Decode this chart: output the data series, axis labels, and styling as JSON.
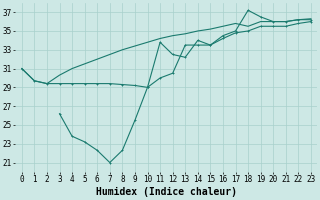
{
  "background_color": "#cde8e5",
  "grid_color": "#a8d0cc",
  "line_color": "#1a7a6e",
  "xlabel": "Humidex (Indice chaleur)",
  "xlabel_fontsize": 7,
  "tick_fontsize": 5.5,
  "xlim": [
    -0.5,
    23.5
  ],
  "ylim": [
    20.0,
    38.0
  ],
  "yticks": [
    21,
    23,
    25,
    27,
    29,
    31,
    33,
    35,
    37
  ],
  "xticks": [
    0,
    1,
    2,
    3,
    4,
    5,
    6,
    7,
    8,
    9,
    10,
    11,
    12,
    13,
    14,
    15,
    16,
    17,
    18,
    19,
    20,
    21,
    22,
    23
  ],
  "line1_x": [
    0,
    1,
    2,
    3,
    4,
    5,
    6,
    7,
    8,
    9,
    10,
    11,
    12,
    13,
    14,
    15,
    16,
    17,
    18,
    19,
    20,
    21,
    22,
    23
  ],
  "line1_y": [
    31.0,
    29.7,
    29.4,
    29.4,
    29.4,
    29.4,
    29.4,
    29.4,
    29.3,
    29.2,
    29.0,
    30.0,
    30.5,
    33.5,
    33.5,
    33.5,
    34.2,
    34.8,
    35.0,
    35.5,
    35.5,
    35.5,
    35.8,
    36.0
  ],
  "line2_x": [
    3,
    4,
    5,
    6,
    7,
    8,
    9,
    10,
    11,
    12,
    13,
    14,
    15,
    16,
    17,
    18,
    19,
    20,
    21,
    22,
    23
  ],
  "line2_y": [
    26.2,
    23.8,
    23.2,
    22.3,
    21.0,
    22.3,
    25.5,
    29.0,
    33.8,
    32.5,
    32.2,
    34.0,
    33.5,
    34.5,
    35.0,
    37.2,
    36.5,
    36.0,
    36.0,
    36.2,
    36.2
  ],
  "line3_x": [
    0,
    1,
    2,
    3,
    4,
    5,
    6,
    7,
    8,
    9,
    10,
    11,
    12,
    13,
    14,
    15,
    16,
    17,
    18,
    19,
    20,
    21,
    22,
    23
  ],
  "line3_y": [
    31.0,
    29.7,
    29.4,
    30.3,
    31.0,
    31.5,
    32.0,
    32.5,
    33.0,
    33.4,
    33.8,
    34.2,
    34.5,
    34.7,
    35.0,
    35.2,
    35.5,
    35.8,
    35.5,
    36.0,
    36.0,
    36.0,
    36.2,
    36.3
  ]
}
